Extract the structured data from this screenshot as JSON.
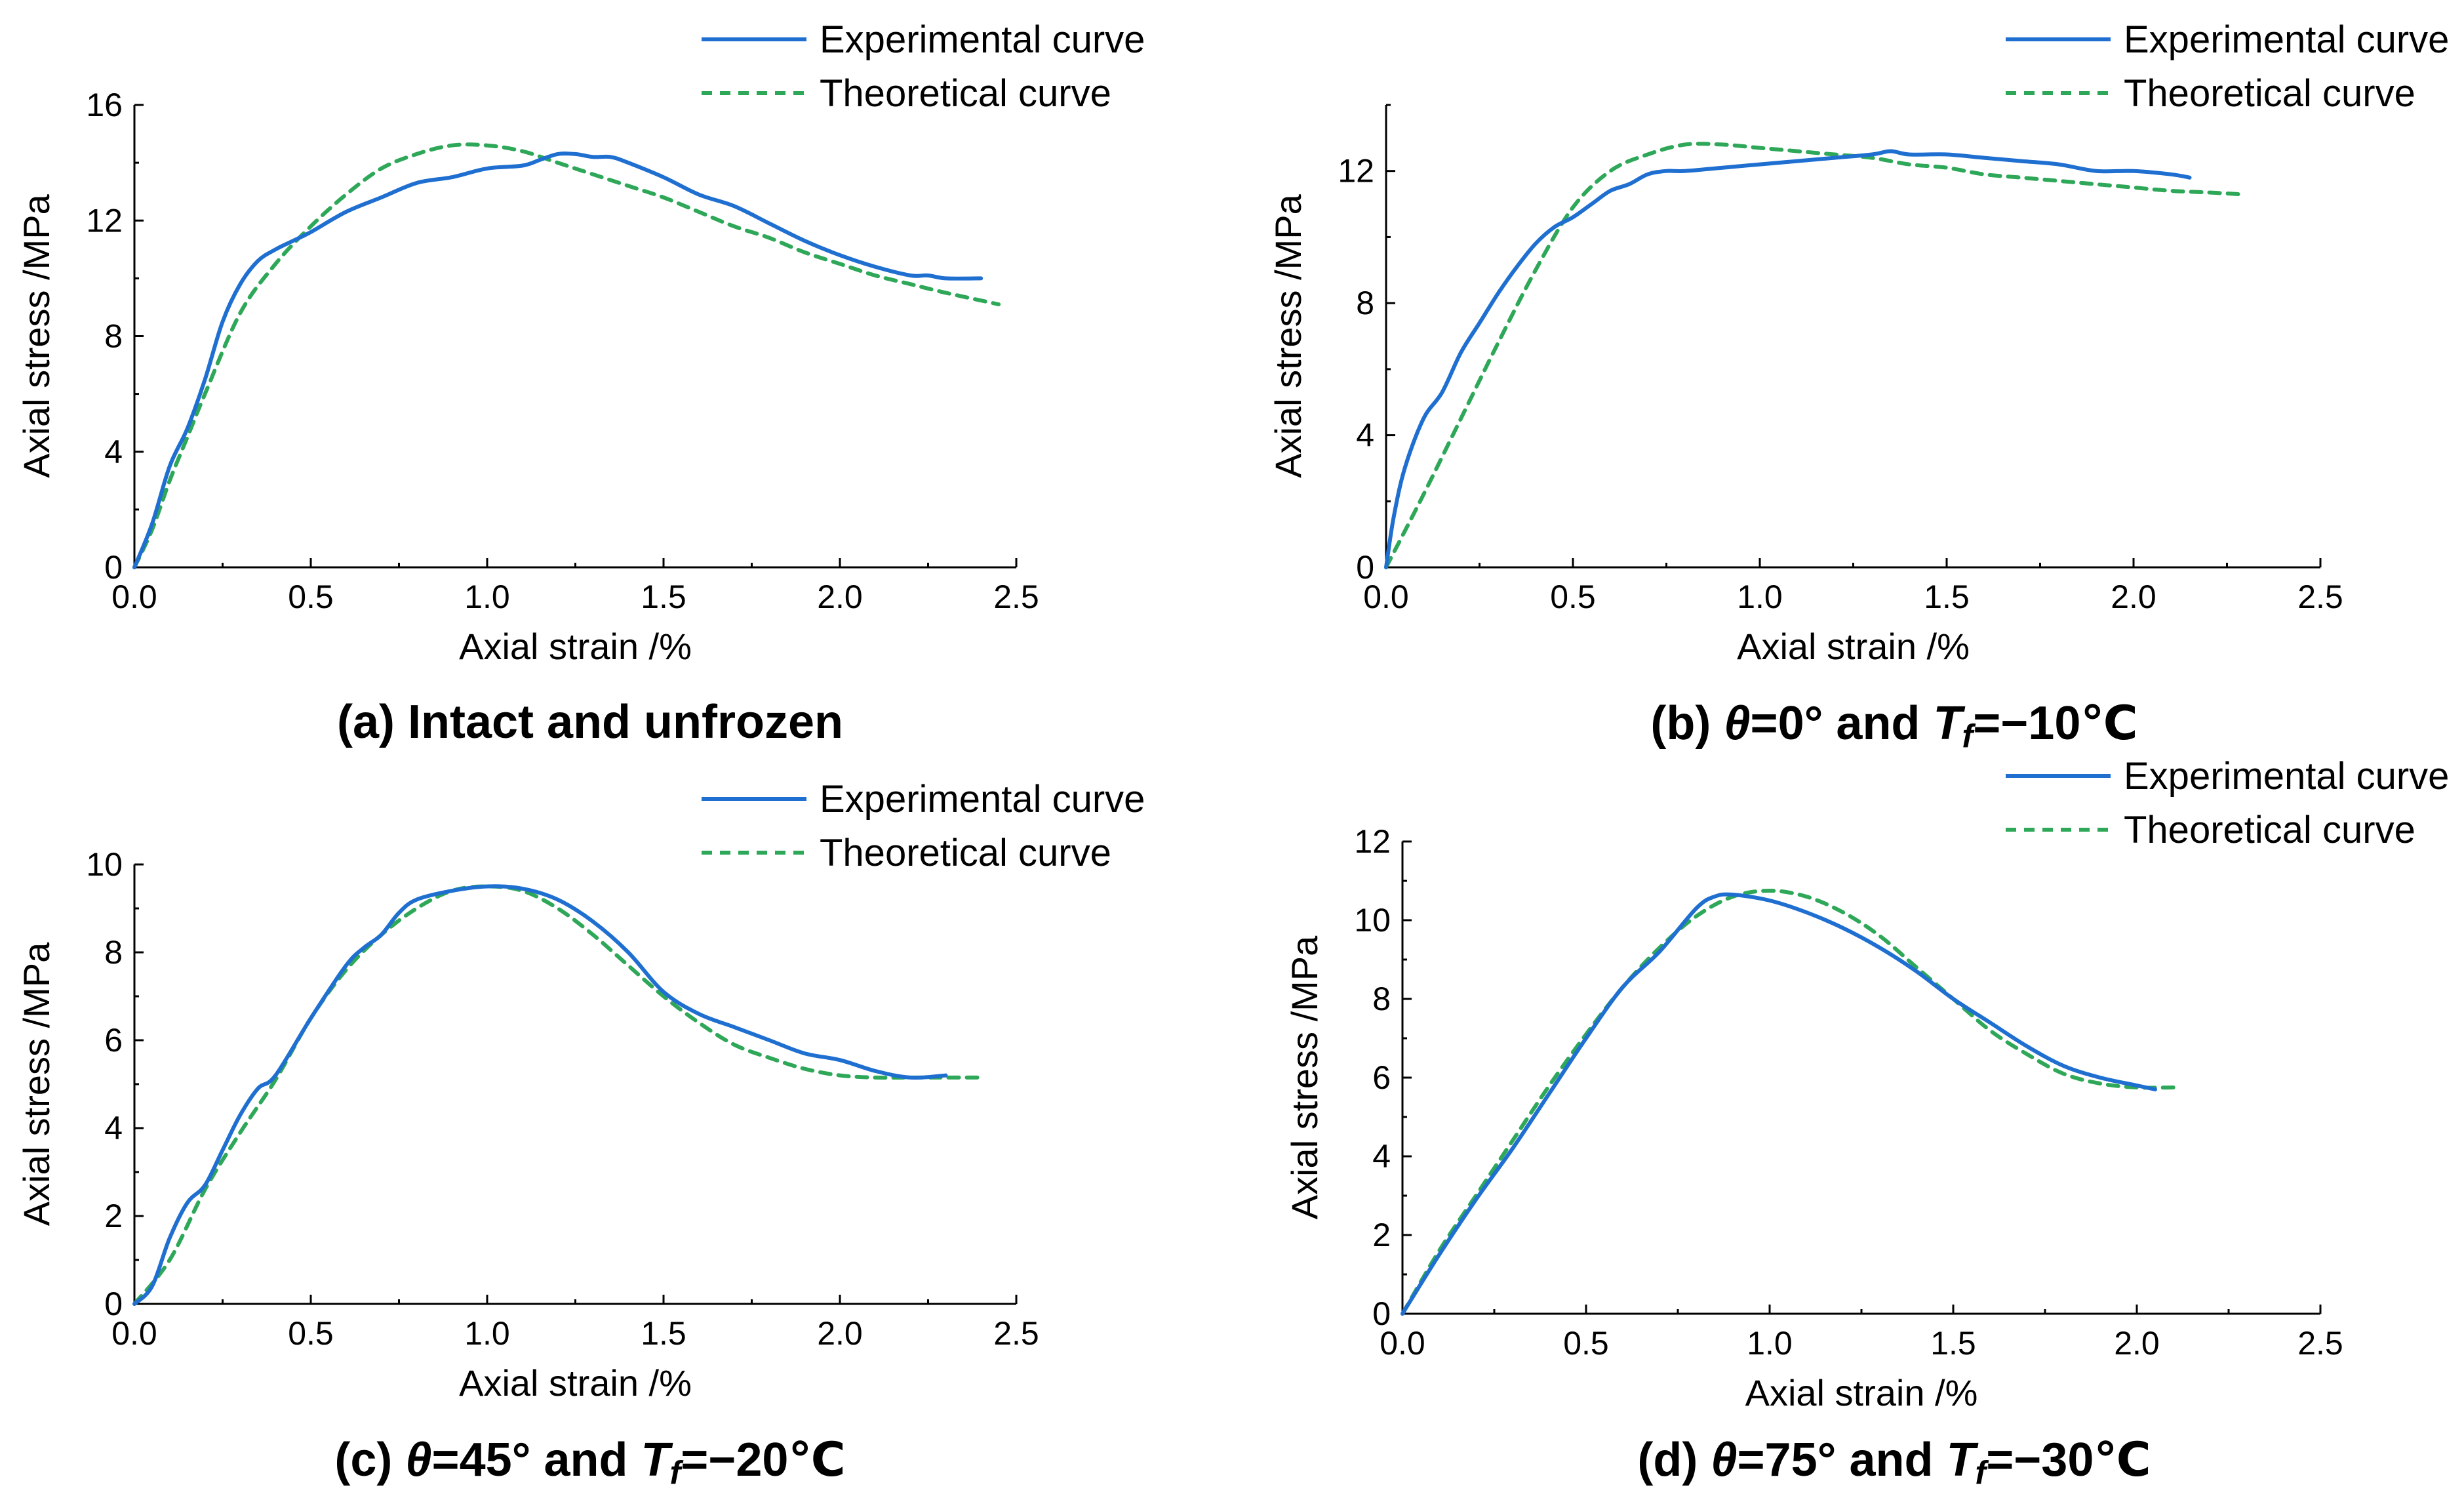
{
  "legend": {
    "experimental": "Experimental curve",
    "theoretical": "Theoretical curve",
    "experimental_color": "#1f6fd1",
    "theoretical_color": "#2ea858"
  },
  "axes": {
    "xlabel": "Axial strain /%",
    "ylabel": "Axial stress /MPa"
  },
  "captions": {
    "a": {
      "text": "(a) Intact and unfrozen"
    },
    "b": {
      "prefix": "(b) ",
      "theta_symbol": "θ",
      "theta_val": "=0° and ",
      "t_symbol": "T",
      "t_sub": "f",
      "t_val": "=−10℃"
    },
    "c": {
      "prefix": "(c) ",
      "theta_symbol": "θ",
      "theta_val": "=45° and ",
      "t_symbol": "T",
      "t_sub": "f",
      "t_val": "=−20℃"
    },
    "d": {
      "prefix": "(d) ",
      "theta_symbol": "θ",
      "theta_val": "=75° and ",
      "t_symbol": "T",
      "t_sub": "f",
      "t_val": "=−30℃"
    }
  },
  "chart_data": [
    {
      "id": "a",
      "type": "line",
      "title": "(a) Intact and unfrozen",
      "xlabel": "Axial strain /%",
      "ylabel": "Axial stress /MPa",
      "xlim": [
        0,
        2.5
      ],
      "ylim": [
        0,
        16
      ],
      "xticks": [
        0.0,
        0.5,
        1.0,
        1.5,
        2.0,
        2.5
      ],
      "yticks": [
        0,
        4,
        8,
        12,
        16
      ],
      "xtick_labels": [
        "0.0",
        "0.5",
        "1.0",
        "1.5",
        "2.0",
        "2.5"
      ],
      "ytick_labels": [
        "0",
        "4",
        "8",
        "12",
        "16"
      ],
      "series": [
        {
          "name": "Experimental curve",
          "x": [
            0,
            0.05,
            0.1,
            0.15,
            0.2,
            0.25,
            0.3,
            0.35,
            0.4,
            0.45,
            0.5,
            0.6,
            0.7,
            0.8,
            0.9,
            1.0,
            1.1,
            1.15,
            1.2,
            1.25,
            1.3,
            1.35,
            1.4,
            1.5,
            1.6,
            1.7,
            1.8,
            1.9,
            2.0,
            2.1,
            2.2,
            2.25,
            2.3,
            2.4
          ],
          "y": [
            0,
            1.5,
            3.5,
            4.8,
            6.5,
            8.5,
            9.8,
            10.6,
            11.0,
            11.3,
            11.6,
            12.3,
            12.8,
            13.3,
            13.5,
            13.8,
            13.9,
            14.1,
            14.3,
            14.3,
            14.2,
            14.2,
            14.0,
            13.5,
            12.9,
            12.5,
            11.9,
            11.3,
            10.8,
            10.4,
            10.1,
            10.1,
            10.0,
            10.0
          ]
        },
        {
          "name": "Theoretical curve",
          "x": [
            0,
            0.05,
            0.1,
            0.15,
            0.2,
            0.3,
            0.4,
            0.5,
            0.6,
            0.7,
            0.8,
            0.9,
            1.0,
            1.1,
            1.2,
            1.3,
            1.4,
            1.5,
            1.6,
            1.7,
            1.8,
            1.9,
            2.0,
            2.1,
            2.2,
            2.3,
            2.45
          ],
          "y": [
            0,
            1.3,
            3.0,
            4.5,
            6.0,
            8.8,
            10.5,
            11.8,
            12.9,
            13.8,
            14.3,
            14.6,
            14.6,
            14.4,
            14.0,
            13.6,
            13.2,
            12.8,
            12.3,
            11.8,
            11.4,
            10.9,
            10.5,
            10.1,
            9.8,
            9.5,
            9.1
          ]
        }
      ]
    },
    {
      "id": "b",
      "type": "line",
      "title": "(b) θ=0° and Tf=−10℃",
      "xlabel": "Axial strain /%",
      "ylabel": "Axial stress /MPa",
      "xlim": [
        0,
        2.5
      ],
      "ylim": [
        0,
        14
      ],
      "xticks": [
        0.0,
        0.5,
        1.0,
        1.5,
        2.0,
        2.5
      ],
      "yticks": [
        0,
        4,
        8,
        12
      ],
      "xtick_labels": [
        "0.0",
        "0.5",
        "1.0",
        "1.5",
        "2.0",
        "2.5"
      ],
      "ytick_labels": [
        "0",
        "4",
        "8",
        "12"
      ],
      "series": [
        {
          "name": "Experimental curve",
          "x": [
            0,
            0.02,
            0.05,
            0.1,
            0.15,
            0.2,
            0.25,
            0.3,
            0.35,
            0.4,
            0.45,
            0.5,
            0.55,
            0.6,
            0.65,
            0.7,
            0.75,
            0.8,
            0.9,
            1.0,
            1.1,
            1.2,
            1.3,
            1.35,
            1.4,
            1.5,
            1.6,
            1.7,
            1.8,
            1.9,
            2.0,
            2.1,
            2.15
          ],
          "y": [
            0,
            1.5,
            3.0,
            4.5,
            5.3,
            6.5,
            7.4,
            8.3,
            9.1,
            9.8,
            10.3,
            10.6,
            11.0,
            11.4,
            11.6,
            11.9,
            12.0,
            12.0,
            12.1,
            12.2,
            12.3,
            12.4,
            12.5,
            12.6,
            12.5,
            12.5,
            12.4,
            12.3,
            12.2,
            12.0,
            12.0,
            11.9,
            11.8
          ]
        },
        {
          "name": "Theoretical curve",
          "x": [
            0,
            0.1,
            0.2,
            0.3,
            0.4,
            0.5,
            0.6,
            0.7,
            0.8,
            0.9,
            1.0,
            1.1,
            1.2,
            1.3,
            1.4,
            1.5,
            1.6,
            1.7,
            1.8,
            1.9,
            2.0,
            2.1,
            2.2,
            2.28
          ],
          "y": [
            0,
            2.2,
            4.5,
            6.8,
            9.0,
            10.9,
            12.0,
            12.5,
            12.8,
            12.8,
            12.7,
            12.6,
            12.5,
            12.4,
            12.2,
            12.1,
            11.9,
            11.8,
            11.7,
            11.6,
            11.5,
            11.4,
            11.35,
            11.3
          ]
        }
      ]
    },
    {
      "id": "c",
      "type": "line",
      "title": "(c) θ=45° and Tf=−20℃",
      "xlabel": "Axial strain /%",
      "ylabel": "Axial stress /MPa",
      "xlim": [
        0,
        2.5
      ],
      "ylim": [
        0,
        10
      ],
      "xticks": [
        0.0,
        0.5,
        1.0,
        1.5,
        2.0,
        2.5
      ],
      "yticks": [
        0,
        2,
        4,
        6,
        8,
        10
      ],
      "xtick_labels": [
        "0.0",
        "0.5",
        "1.0",
        "1.5",
        "2.0",
        "2.5"
      ],
      "ytick_labels": [
        "0",
        "2",
        "4",
        "6",
        "8",
        "10"
      ],
      "series": [
        {
          "name": "Experimental curve",
          "x": [
            0,
            0.05,
            0.1,
            0.15,
            0.2,
            0.25,
            0.3,
            0.35,
            0.4,
            0.5,
            0.6,
            0.65,
            0.7,
            0.75,
            0.8,
            0.9,
            1.0,
            1.1,
            1.2,
            1.3,
            1.4,
            1.5,
            1.6,
            1.7,
            1.8,
            1.9,
            2.0,
            2.1,
            2.2,
            2.3
          ],
          "y": [
            0,
            0.4,
            1.5,
            2.3,
            2.7,
            3.5,
            4.3,
            4.9,
            5.2,
            6.5,
            7.7,
            8.1,
            8.4,
            8.9,
            9.2,
            9.4,
            9.5,
            9.45,
            9.2,
            8.7,
            8.0,
            7.1,
            6.6,
            6.3,
            6.0,
            5.7,
            5.55,
            5.3,
            5.15,
            5.2
          ]
        },
        {
          "name": "Theoretical curve",
          "x": [
            0,
            0.1,
            0.2,
            0.3,
            0.4,
            0.5,
            0.6,
            0.7,
            0.8,
            0.9,
            1.0,
            1.1,
            1.2,
            1.3,
            1.4,
            1.5,
            1.6,
            1.7,
            1.8,
            1.9,
            2.0,
            2.1,
            2.2,
            2.3,
            2.4
          ],
          "y": [
            0,
            1.0,
            2.6,
            3.9,
            5.1,
            6.5,
            7.6,
            8.4,
            9.0,
            9.4,
            9.5,
            9.4,
            9.0,
            8.4,
            7.7,
            7.0,
            6.4,
            5.9,
            5.6,
            5.35,
            5.2,
            5.15,
            5.15,
            5.15,
            5.15
          ]
        }
      ]
    },
    {
      "id": "d",
      "type": "line",
      "title": "(d) θ=75° and Tf=−30℃",
      "xlabel": "Axial strain /%",
      "ylabel": "Axial stress /MPa",
      "xlim": [
        0,
        2.5
      ],
      "ylim": [
        0,
        12
      ],
      "xticks": [
        0.0,
        0.5,
        1.0,
        1.5,
        2.0,
        2.5
      ],
      "yticks": [
        0,
        2,
        4,
        6,
        8,
        10,
        12
      ],
      "xtick_labels": [
        "0.0",
        "0.5",
        "1.0",
        "1.5",
        "2.0",
        "2.5"
      ],
      "ytick_labels": [
        "0",
        "2",
        "4",
        "6",
        "8",
        "10",
        "12"
      ],
      "series": [
        {
          "name": "Experimental curve",
          "x": [
            0,
            0.1,
            0.2,
            0.3,
            0.4,
            0.5,
            0.6,
            0.7,
            0.8,
            0.85,
            0.9,
            1.0,
            1.1,
            1.2,
            1.3,
            1.4,
            1.5,
            1.6,
            1.7,
            1.8,
            1.9,
            2.0,
            2.05
          ],
          "y": [
            0,
            1.5,
            2.9,
            4.2,
            5.6,
            7.0,
            8.3,
            9.2,
            10.3,
            10.6,
            10.65,
            10.5,
            10.2,
            9.8,
            9.3,
            8.7,
            8.0,
            7.4,
            6.8,
            6.3,
            6.0,
            5.8,
            5.7
          ]
        },
        {
          "name": "Theoretical curve",
          "x": [
            0,
            0.1,
            0.2,
            0.3,
            0.4,
            0.5,
            0.6,
            0.7,
            0.8,
            0.9,
            1.0,
            1.1,
            1.2,
            1.3,
            1.4,
            1.5,
            1.6,
            1.7,
            1.8,
            1.9,
            2.0,
            2.1
          ],
          "y": [
            0,
            1.6,
            3.0,
            4.4,
            5.8,
            7.1,
            8.3,
            9.3,
            10.1,
            10.6,
            10.75,
            10.6,
            10.2,
            9.6,
            8.8,
            8.0,
            7.2,
            6.6,
            6.1,
            5.85,
            5.75,
            5.75
          ]
        }
      ]
    }
  ]
}
